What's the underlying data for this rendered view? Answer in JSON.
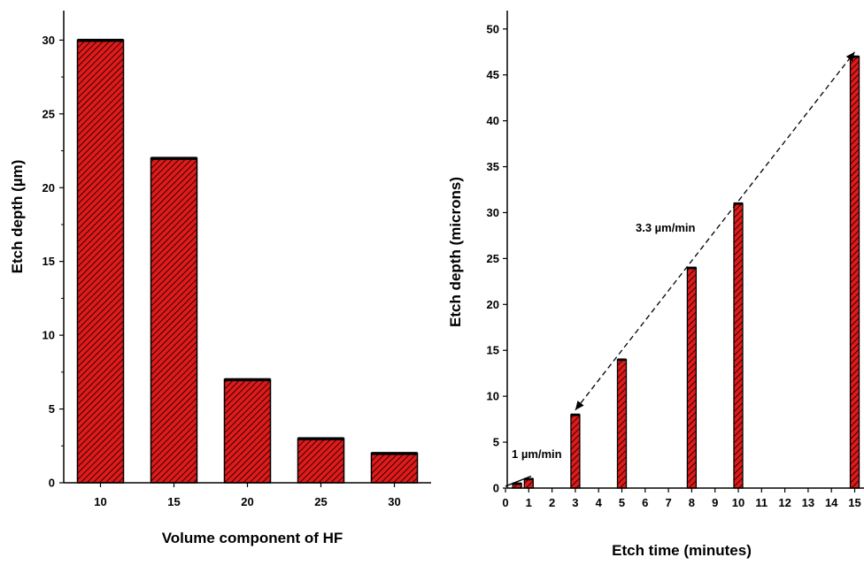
{
  "colors": {
    "bar_fill": "#e01a1a",
    "bar_hatch": "#000000",
    "axis": "#000000"
  },
  "chart_data": [
    {
      "type": "bar",
      "title": "",
      "xlabel": "Volume component of HF",
      "ylabel": "Etch depth (µm)",
      "categories": [
        "10",
        "15",
        "20",
        "25",
        "30"
      ],
      "values": [
        30,
        22,
        7,
        3,
        2
      ],
      "ylim": [
        0,
        32
      ],
      "yticks": [
        "0",
        "5",
        "10",
        "15",
        "20",
        "25",
        "30"
      ],
      "grid": false,
      "bar_pattern": "diagonal-hatch"
    },
    {
      "type": "bar",
      "title": "",
      "xlabel": "Etch time (minutes)",
      "ylabel": "Etch depth (microns)",
      "x": [
        0.5,
        1,
        3,
        5,
        8,
        10,
        15
      ],
      "values": [
        0.5,
        1,
        8,
        14,
        24,
        31,
        47
      ],
      "xlim": [
        0,
        15
      ],
      "ylim": [
        0,
        52
      ],
      "xticks": [
        "0",
        "1",
        "2",
        "3",
        "4",
        "5",
        "6",
        "7",
        "8",
        "9",
        "10",
        "11",
        "12",
        "13",
        "14",
        "15"
      ],
      "yticks": [
        "0",
        "5",
        "10",
        "15",
        "20",
        "25",
        "30",
        "35",
        "40",
        "45",
        "50"
      ],
      "grid": false,
      "bar_pattern": "diagonal-hatch",
      "annotations": [
        {
          "text": "1 µm/min",
          "line_from": [
            0,
            0.2
          ],
          "line_to": [
            1.1,
            1.3
          ]
        },
        {
          "text": "3.3 µm/min",
          "line_from": [
            3,
            8.5
          ],
          "line_to": [
            15,
            47.5
          ]
        }
      ]
    }
  ]
}
